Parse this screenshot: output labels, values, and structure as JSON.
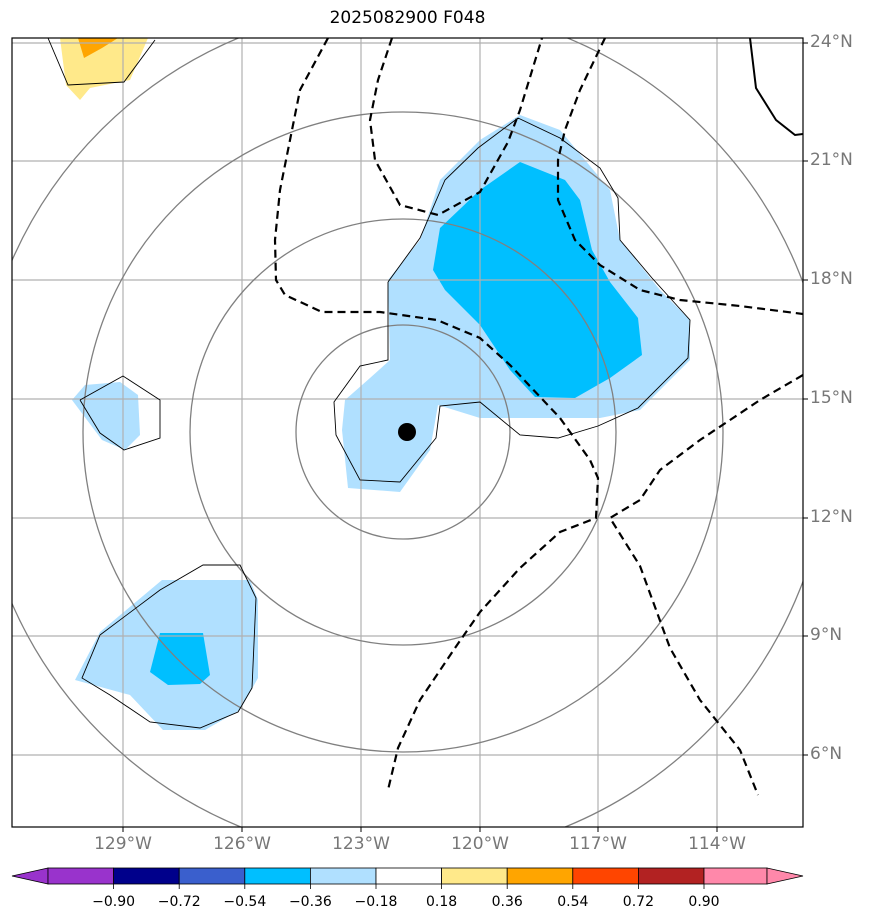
{
  "title": "2025082900 F048",
  "lat_labels": [
    "24°N",
    "21°N",
    "18°N",
    "15°N",
    "12°N",
    "9°N",
    "6°N"
  ],
  "lon_labels": [
    "129°W",
    "126°W",
    "123°W",
    "120°W",
    "117°W",
    "114°W"
  ],
  "colorbar": {
    "labels": [
      "−0.90",
      "−0.72",
      "−0.54",
      "−0.36",
      "−0.18",
      "0.18",
      "0.36",
      "0.54",
      "0.72",
      "0.90"
    ],
    "colors": [
      "#9933cc",
      "#00008b",
      "#3a5fcd",
      "#00bfff",
      "#b0e0ff",
      "#ffffff",
      "#ffe98a",
      "#ffa500",
      "#ff4500",
      "#b22222",
      "#ff88aa"
    ]
  },
  "colors": {
    "grid": "#b0b0b0",
    "range_ring": "#808080",
    "contour": "#000000",
    "light_blue": "#b0e0ff",
    "blue": "#00bfff",
    "yellow": "#ffe98a",
    "orange": "#ffa500"
  }
}
